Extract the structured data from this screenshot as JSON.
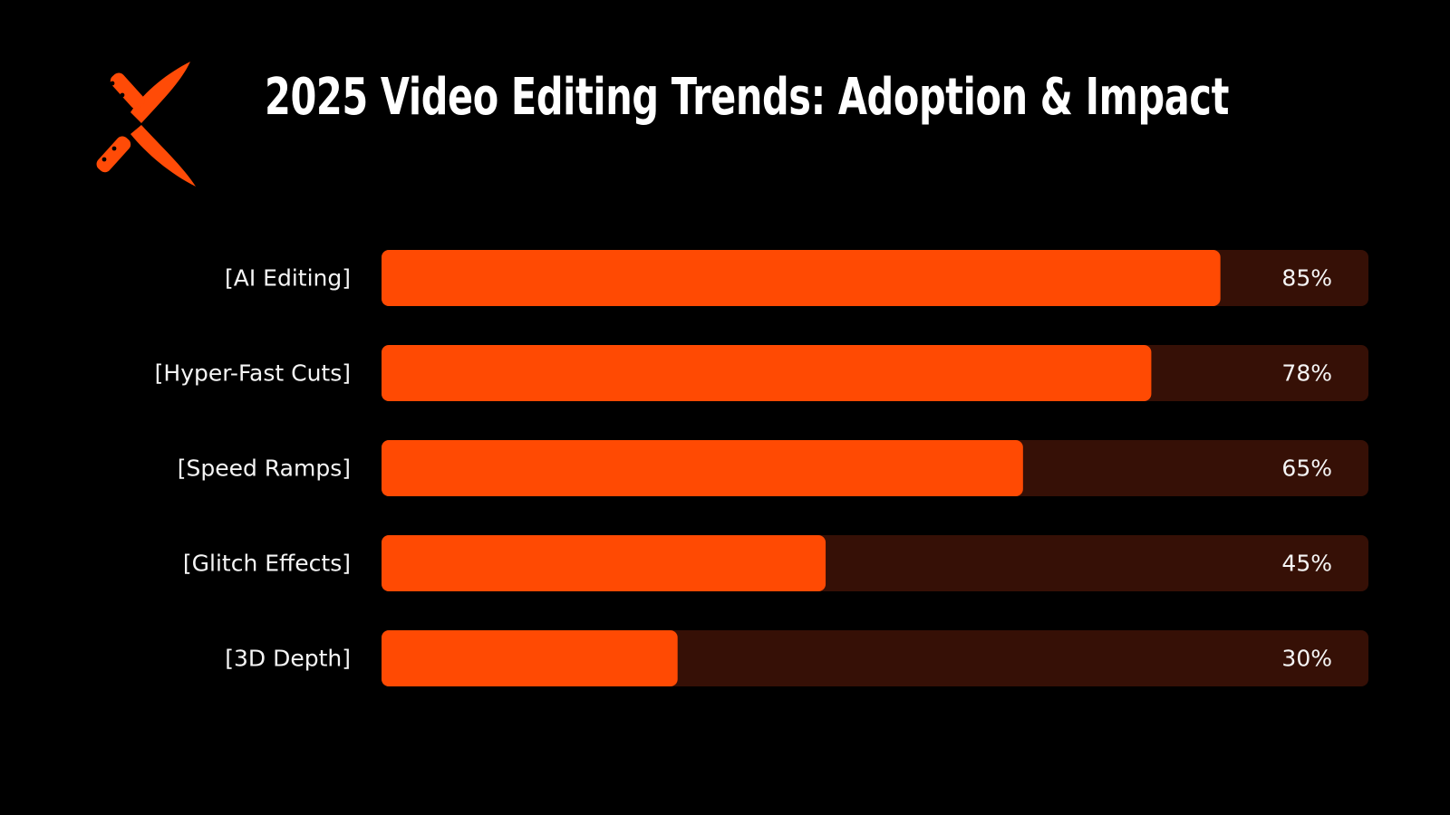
{
  "title": "2025 Video Editing Trends: Adoption & Impact",
  "logo": {
    "icon": "crossed-knives-icon",
    "color": "#FF4B07"
  },
  "colors": {
    "background": "#000000",
    "bar_fill": "#FF4A03",
    "bar_track": "#361006",
    "text": "#F5F5F5"
  },
  "chart_data": {
    "type": "bar",
    "orientation": "horizontal",
    "title": "2025 Video Editing Trends: Adoption & Impact",
    "categories": [
      "[AI Editing]",
      "[Hyper-Fast Cuts]",
      "[Speed Ramps]",
      "[Glitch Effects]",
      "[3D Depth]"
    ],
    "values": [
      85,
      78,
      65,
      45,
      30
    ],
    "value_labels": [
      "85%",
      "78%",
      "65%",
      "45%",
      "30%"
    ],
    "xlim": [
      0,
      100
    ],
    "grid": false,
    "legend": "none"
  }
}
